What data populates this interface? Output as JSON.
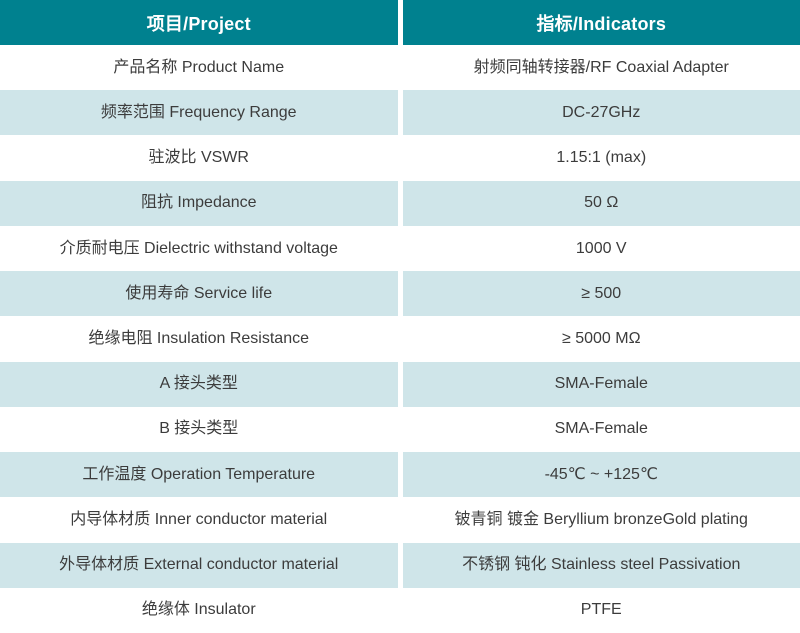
{
  "table": {
    "header": {
      "project": "项目/Project",
      "indicators": "指标/Indicators"
    },
    "rows": [
      {
        "project": "产品名称 Product Name",
        "indicator": "射频同轴转接器/RF Coaxial Adapter"
      },
      {
        "project": "频率范围 Frequency Range",
        "indicator": "DC-27GHz"
      },
      {
        "project": "驻波比 VSWR",
        "indicator": "1.15:1 (max)"
      },
      {
        "project": "阻抗 Impedance",
        "indicator": "50 Ω"
      },
      {
        "project": "介质耐电压 Dielectric withstand voltage",
        "indicator": "1000 V"
      },
      {
        "project": "使用寿命 Service life",
        "indicator": "≥ 500"
      },
      {
        "project": "绝缘电阻 Insulation Resistance",
        "indicator": "≥ 5000 MΩ"
      },
      {
        "project": "A 接头类型",
        "indicator": "SMA-Female"
      },
      {
        "project": "B 接头类型",
        "indicator": "SMA-Female"
      },
      {
        "project": "工作温度 Operation Temperature",
        "indicator": "-45℃ ~ +125℃"
      },
      {
        "project": "内导体材质 Inner conductor material",
        "indicator": "铍青铜 镀金 Beryllium bronzeGold plating"
      },
      {
        "project": "外导体材质 External conductor material",
        "indicator": "不锈钢 钝化 Stainless steel Passivation"
      },
      {
        "project": "绝缘体 Insulator",
        "indicator": "PTFE"
      }
    ],
    "colors": {
      "header_bg": "#00818F",
      "header_text": "#FFFFFF",
      "row_alt_bg": "#CFE5E9",
      "row_bg": "#FFFFFF",
      "body_text": "#3C3C3C"
    }
  }
}
